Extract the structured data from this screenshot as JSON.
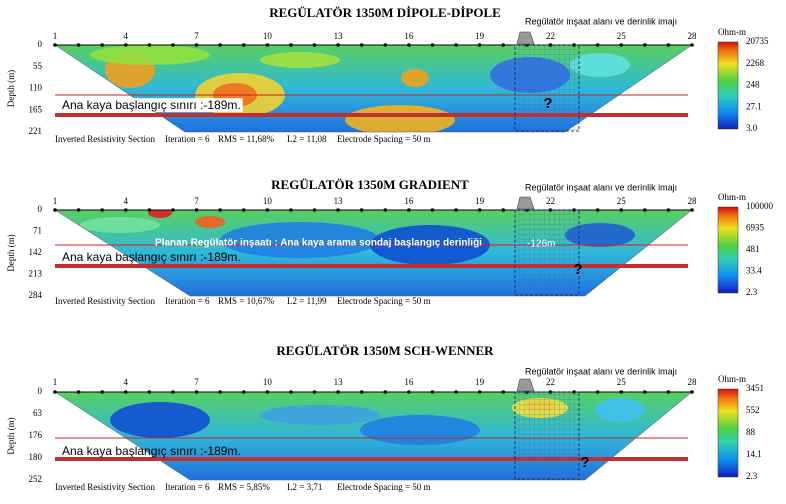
{
  "panels": [
    {
      "title": "REGÜLATÖR 1350M DİPOLE-DİPOLE",
      "annotation": "Regülatör inşaat alanı ve derinlik imajı",
      "electrodes": [
        1,
        4,
        7,
        10,
        13,
        16,
        19,
        22,
        25,
        28
      ],
      "depth_label": "Depth (m)",
      "depths": [
        0,
        55,
        110,
        165,
        221
      ],
      "bedrock_label": "Ana  kaya başlangıç sınırı :-189m.",
      "question": "?",
      "footer": [
        "Inverted Resistivity Section",
        "Iteration = 6",
        "RMS = 11,68%",
        "L2 = 11,08",
        "Electrode Spacing = 50 m"
      ],
      "scale": {
        "unit": "Ohm-m",
        "labels": [
          "20735",
          "2268",
          "248",
          "27.1",
          "3.0"
        ]
      }
    },
    {
      "title": "REGÜLATÖR 1350M GRADIENT",
      "annotation": "Regülatör inşaat alanı ve derinlik imajı",
      "electrodes": [
        1,
        4,
        7,
        10,
        13,
        16,
        19,
        22,
        25,
        28
      ],
      "depth_label": "Depth (m)",
      "depths": [
        0,
        71,
        142,
        213,
        284
      ],
      "plan_label": "Planan Regülatör inşaatı : Ana kaya arama sondaj başlangıç derinliği",
      "plan_depth": "-126m",
      "bedrock_label": "Ana  kaya başlangıç sınırı :-189m.",
      "question": "?",
      "footer": [
        "Inverted Resistivity Section",
        "Iteration = 6",
        "RMS = 10,67%",
        "L2 = 11,99",
        "Electrode Spacing = 50 m"
      ],
      "scale": {
        "unit": "Ohm-m",
        "labels": [
          "100000",
          "6935",
          "481",
          "33.4",
          "2.3"
        ]
      }
    },
    {
      "title": "REGÜLATÖR 1350M SCH-WENNER",
      "annotation": "Regülatör inşaat alanı ve derinlik imajı",
      "electrodes": [
        1,
        4,
        7,
        10,
        13,
        16,
        19,
        22,
        25,
        28
      ],
      "depth_label": "Depth (m)",
      "depths": [
        0,
        63,
        176,
        180,
        252
      ],
      "bedrock_label": "Ana  kaya başlangıç sınırı :-189m.",
      "question": "?",
      "footer": [
        "Inverted Resistivity Section",
        "Iteration = 6",
        "RMS = 5,85%",
        "L2 = 3,71",
        "Electrode Spacing = 50 m"
      ],
      "scale": {
        "unit": "Ohm-m",
        "labels": [
          "3451",
          "552",
          "88",
          "14.1",
          "2.3"
        ]
      }
    }
  ]
}
